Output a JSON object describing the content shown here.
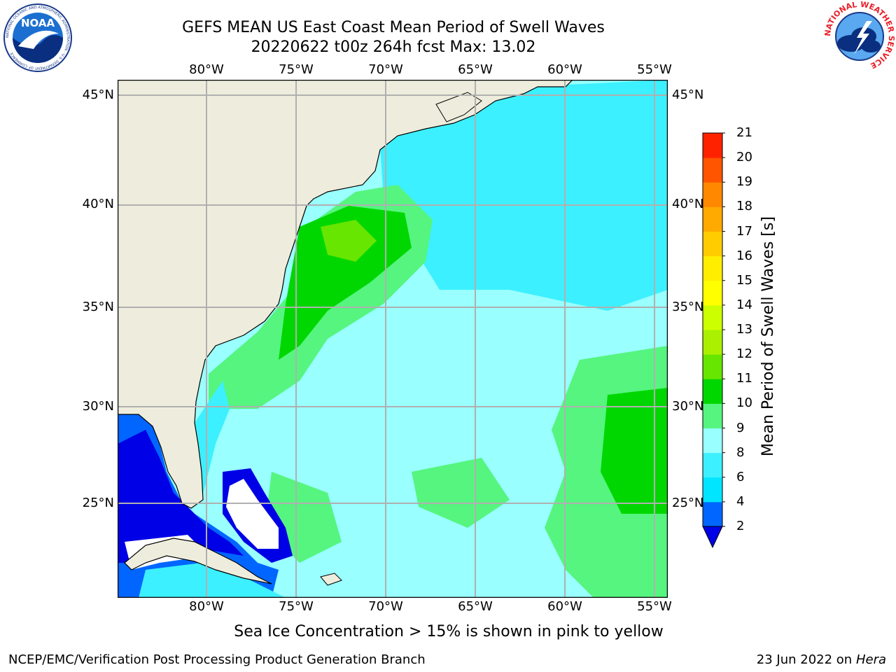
{
  "title": {
    "line1": "GEFS MEAN US East Coast Mean Period of Swell Waves",
    "line2": "20220622 t00z 264h fcst   Max: 13.02"
  },
  "map": {
    "lon_labels": [
      "80°W",
      "75°W",
      "70°W",
      "65°W",
      "60°W",
      "55°W"
    ],
    "lat_labels": [
      "45°N",
      "40°N",
      "35°N",
      "30°N",
      "25°N"
    ],
    "colors": {
      "land": "#EEEDDD",
      "grid": "#B0B0B0",
      "coast": "#000000",
      "nodata": "#FFFFFF"
    }
  },
  "colorbar": {
    "label": "Mean Period of Swell Waves [s]",
    "ticks": [
      "2",
      "4",
      "6",
      "8",
      "9",
      "10",
      "11",
      "12",
      "13",
      "14",
      "15",
      "16",
      "17",
      "18",
      "19",
      "20",
      "21"
    ],
    "colors": [
      "#0066FF",
      "#00E5FF",
      "#3CF0FF",
      "#99FFFF",
      "#55F57F",
      "#00D700",
      "#66E600",
      "#AAF000",
      "#CCFF00",
      "#FFFF00",
      "#FFEE00",
      "#FFCC00",
      "#FFAA00",
      "#FF8800",
      "#FF5500",
      "#FF2200"
    ],
    "under_color": "#0000E6"
  },
  "footer": {
    "note": "Sea Ice Concentration > 15% is shown in pink to yellow",
    "left": "NCEP/EMC/Verification Post Processing Product Generation Branch",
    "right_date": "23 Jun 2022 on",
    "right_host": "Hera"
  },
  "logos": {
    "noaa_text": "NOAA",
    "noaa_ring": "NATIONAL OCEANIC AND ATMOSPHERIC ADMINISTRATION · U.S. DEPARTMENT OF COMMERCE",
    "nws_ring": "NATIONAL WEATHER SERVICE"
  }
}
